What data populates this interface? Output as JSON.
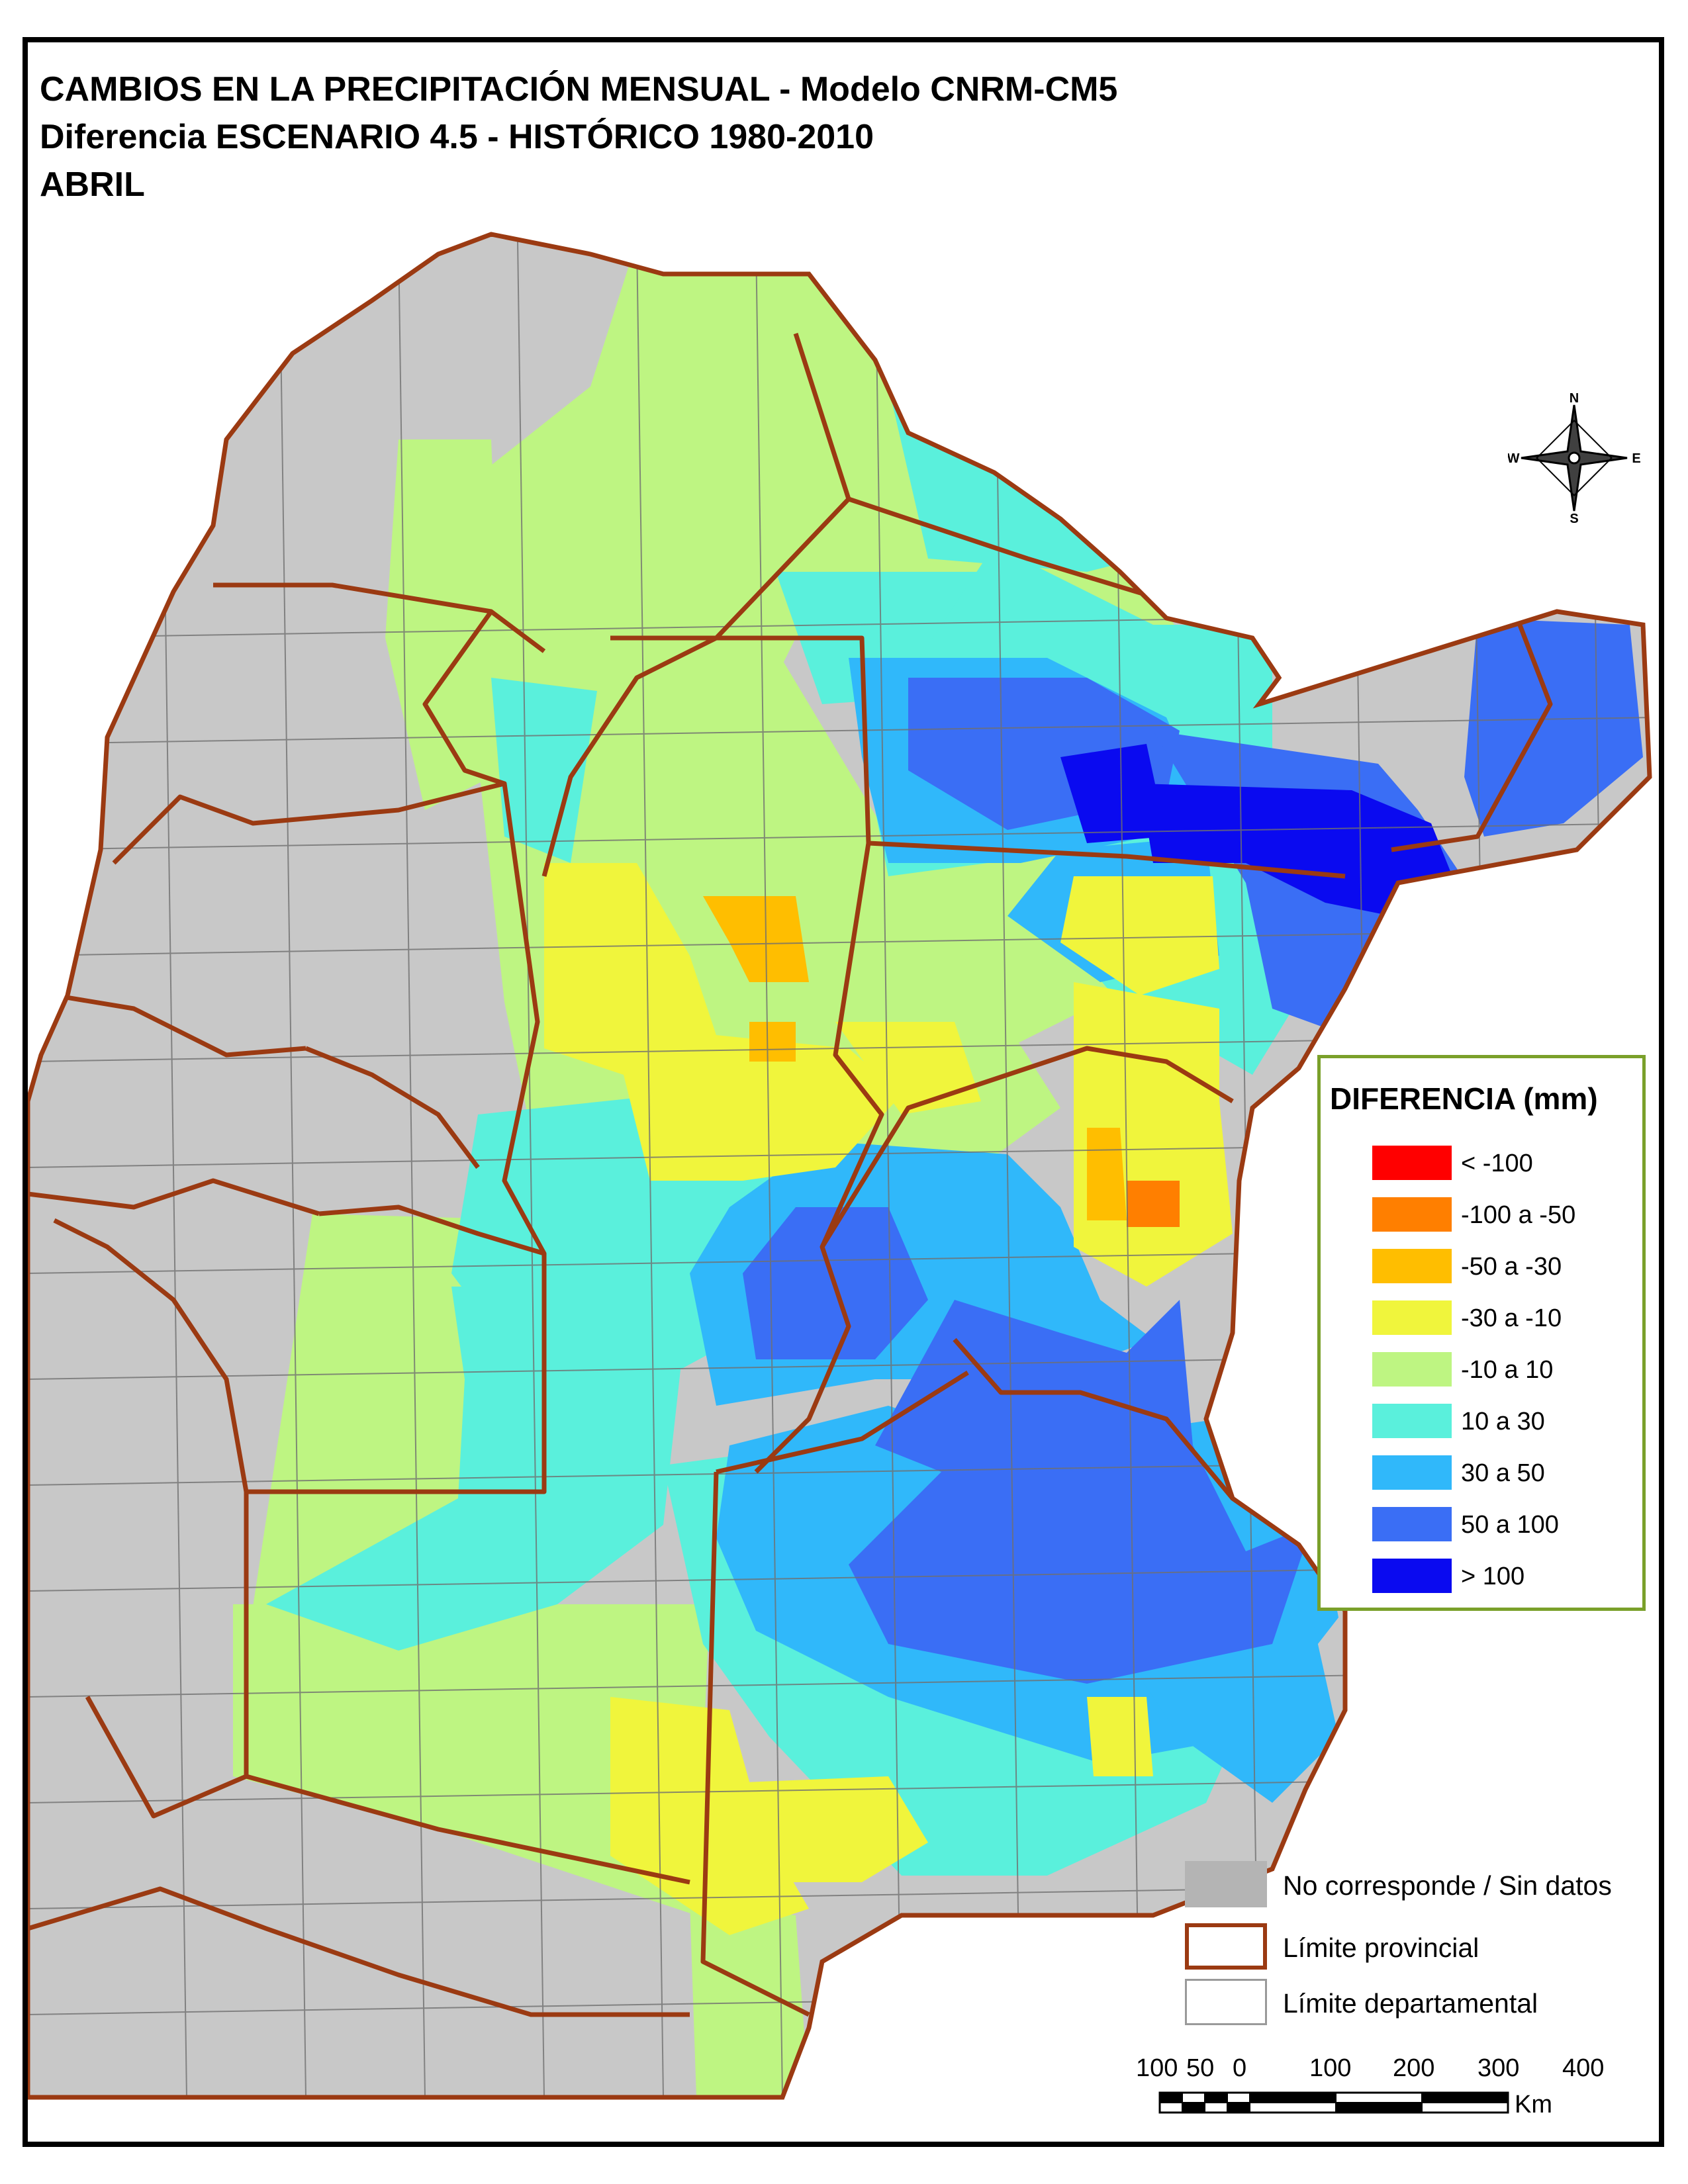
{
  "title": {
    "line1": "CAMBIOS EN LA PRECIPITACIÓN MENSUAL - Modelo CNRM-CM5",
    "line2": "Diferencia ESCENARIO 4.5 - HISTÓRICO 1980-2010",
    "line3": "ABRIL"
  },
  "compass": {
    "n": "N",
    "s": "S",
    "e": "E",
    "w": "W"
  },
  "legend": {
    "title": "DIFERENCIA (mm)",
    "classes": [
      {
        "label": "< -100",
        "color": "#ff0000"
      },
      {
        "label": "-100 a -50",
        "color": "#ff7f00"
      },
      {
        "label": "-50 a -30",
        "color": "#ffbe00"
      },
      {
        "label": "-30 a -10",
        "color": "#f0f53c"
      },
      {
        "label": "-10 a 10",
        "color": "#bef582"
      },
      {
        "label": "10 a 30",
        "color": "#5af0dc"
      },
      {
        "label": "30 a 50",
        "color": "#30b8fa"
      },
      {
        "label": "50 a 100",
        "color": "#3a6ef5"
      },
      {
        "label": "> 100",
        "color": "#0a0af0"
      }
    ]
  },
  "secondary_legend": [
    {
      "label": "No corresponde / Sin datos",
      "type": "nodata",
      "color": "#b4b4b4"
    },
    {
      "label": "Límite provincial",
      "type": "province",
      "color": "#9b3a12"
    },
    {
      "label": "Límite departamental",
      "type": "department",
      "color": "#9a9a9a"
    }
  ],
  "scale_bar": {
    "labels": [
      "100",
      "50",
      "0",
      "100",
      "200",
      "300",
      "400"
    ],
    "unit": "Km"
  },
  "colors": {
    "nodata": "#c8c8c8",
    "province_line": "#9b3a12",
    "department_line": "#707070"
  }
}
